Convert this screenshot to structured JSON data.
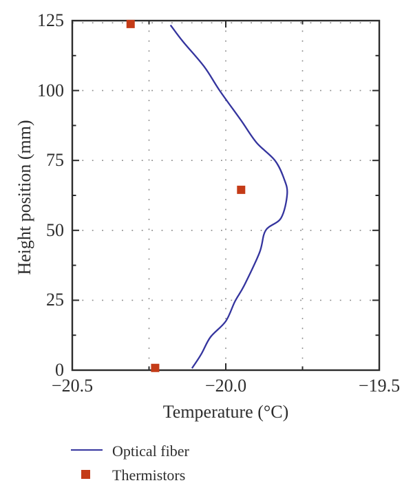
{
  "figure": {
    "background": "#ffffff",
    "axis_color": "#2b2b2b",
    "text_color": "#2d2d2d",
    "grid_color": "#8a8a8a",
    "line_color": "#34349e",
    "marker_color": "#c43b17"
  },
  "chart_data": {
    "type": "line",
    "title": "",
    "xlabel": "Temperature (°C)",
    "ylabel": "Height position (mm)",
    "xlim": [
      -20.5,
      -19.5
    ],
    "ylim": [
      0,
      125
    ],
    "x_major_ticks": [
      -20.5,
      -20.0,
      -19.5
    ],
    "x_tick_labels": [
      "−20.5",
      "−20.0",
      "−19.5"
    ],
    "x_minor_ticks": [
      -20.25,
      -19.75
    ],
    "y_major_ticks": [
      0,
      25,
      50,
      75,
      100,
      125
    ],
    "y_tick_labels": [
      "0",
      "25",
      "50",
      "75",
      "100",
      "125"
    ],
    "y_minor_ticks": [
      12.5,
      37.5,
      62.5,
      87.5,
      112.5
    ],
    "grid": {
      "style": "dotted",
      "vertical_at": [
        -20.25,
        -20.0,
        -19.75
      ],
      "horizontal_at": [
        25,
        50,
        75,
        100,
        125
      ]
    },
    "legend_position": "below",
    "series": [
      {
        "name": "Optical fiber",
        "type": "line",
        "color": "#34349e",
        "points": [
          [
            -20.18,
            123.4
          ],
          [
            -20.14,
            117.6
          ],
          [
            -20.07,
            108.5
          ],
          [
            -20.02,
            100.0
          ],
          [
            -19.95,
            89.3
          ],
          [
            -19.9,
            81.4
          ],
          [
            -19.84,
            75.0
          ],
          [
            -19.81,
            68.4
          ],
          [
            -19.8,
            63.0
          ],
          [
            -19.82,
            54.4
          ],
          [
            -19.87,
            50.0
          ],
          [
            -19.89,
            42.1
          ],
          [
            -19.94,
            30.3
          ],
          [
            -19.97,
            24.6
          ],
          [
            -20.0,
            17.5
          ],
          [
            -20.05,
            11.8
          ],
          [
            -20.08,
            5.7
          ],
          [
            -20.11,
            0.7
          ]
        ]
      },
      {
        "name": "Thermistors",
        "type": "scatter",
        "marker": "square",
        "color": "#c43b17",
        "points": [
          [
            -20.31,
            123.8
          ],
          [
            -19.95,
            64.5
          ],
          [
            -20.23,
            0.8
          ]
        ]
      }
    ]
  }
}
